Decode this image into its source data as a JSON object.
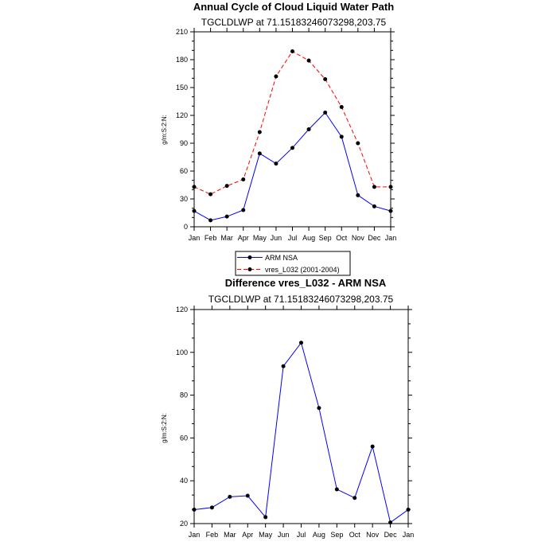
{
  "chart_data": [
    {
      "type": "line",
      "title": "Annual Cycle of Cloud Liquid Water Path",
      "subtitle": "TGCLDLWP at 71.15183246073298,203.75",
      "ylabel": "g/m:S:2:N:",
      "xlabel": "",
      "categories": [
        "Jan",
        "Feb",
        "Mar",
        "Apr",
        "May",
        "Jun",
        "Jul",
        "Aug",
        "Sep",
        "Oct",
        "Nov",
        "Dec",
        "Jan"
      ],
      "ylim": [
        0,
        210
      ],
      "yticks": [
        0,
        30,
        60,
        90,
        120,
        150,
        180,
        210
      ],
      "grid": false,
      "legend_position": "bottom",
      "series": [
        {
          "name": "ARM NSA",
          "color": "#0000ff",
          "dash": "solid",
          "values": [
            17,
            7,
            11,
            18,
            79,
            68,
            85,
            105,
            123,
            97,
            34,
            22,
            17
          ]
        },
        {
          "name": "vres_L032 (2001-2004)",
          "color": "#ff0000",
          "dash": "dashed",
          "values": [
            43,
            35,
            44,
            51,
            102,
            162,
            189,
            179,
            159,
            129,
            90,
            43,
            43
          ]
        }
      ]
    },
    {
      "type": "line",
      "title": "Difference vres_L032 - ARM NSA",
      "subtitle": "TGCLDLWP at 71.15183246073298,203.75",
      "ylabel": "g/m:S:2:N:",
      "xlabel": "",
      "categories": [
        "Jan",
        "Feb",
        "Mar",
        "Apr",
        "May",
        "Jun",
        "Jul",
        "Aug",
        "Sep",
        "Oct",
        "Nov",
        "Dec",
        "Jan"
      ],
      "ylim": [
        20,
        120
      ],
      "yticks": [
        20,
        40,
        60,
        80,
        100,
        120
      ],
      "grid": false,
      "series": [
        {
          "color": "#0000ff",
          "dash": "solid",
          "values": [
            26.5,
            27.5,
            32.5,
            33,
            23,
            93.5,
            104.5,
            74,
            36,
            32,
            56,
            20.5,
            26.5
          ]
        }
      ]
    }
  ]
}
